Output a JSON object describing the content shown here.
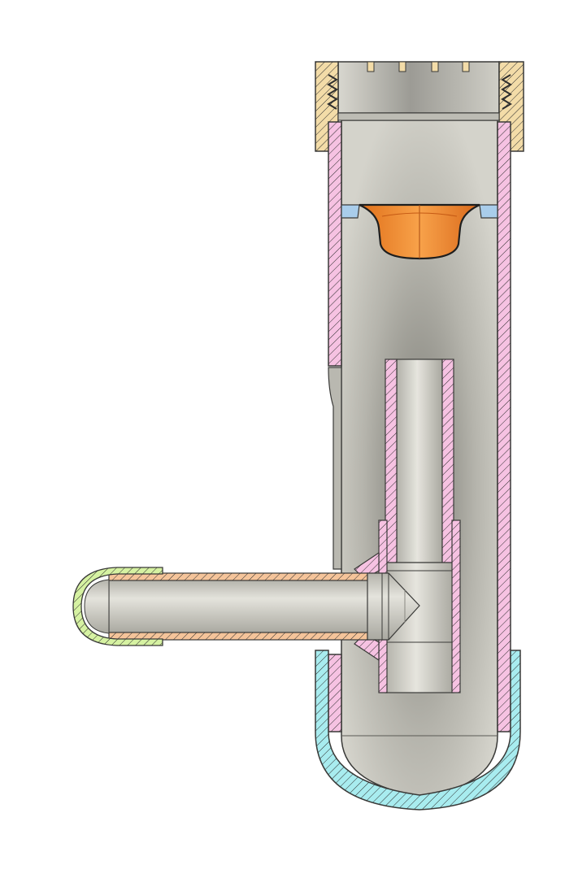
{
  "diagram": {
    "kind": "cad-section-view",
    "colors": {
      "background": "#ffffff",
      "body_fill": "#c9c8c0",
      "body_dark": "#8f8e88",
      "outline": "#3a3a38",
      "thread_cap": "#f3dca8",
      "main_tube": "#f6c2e2",
      "bottom_cap": "#a8ecef",
      "side_tube": "#f5c49a",
      "end_cap": "#d6f2a2",
      "float": "#f08a2a",
      "washer": "#a9cdeb"
    },
    "parts": [
      "top-threaded-cap",
      "main-tube",
      "float-valve",
      "seat-washer",
      "inner-tube",
      "tee-fitting",
      "side-tube",
      "side-end-cap",
      "bottom-dome-cap"
    ]
  }
}
